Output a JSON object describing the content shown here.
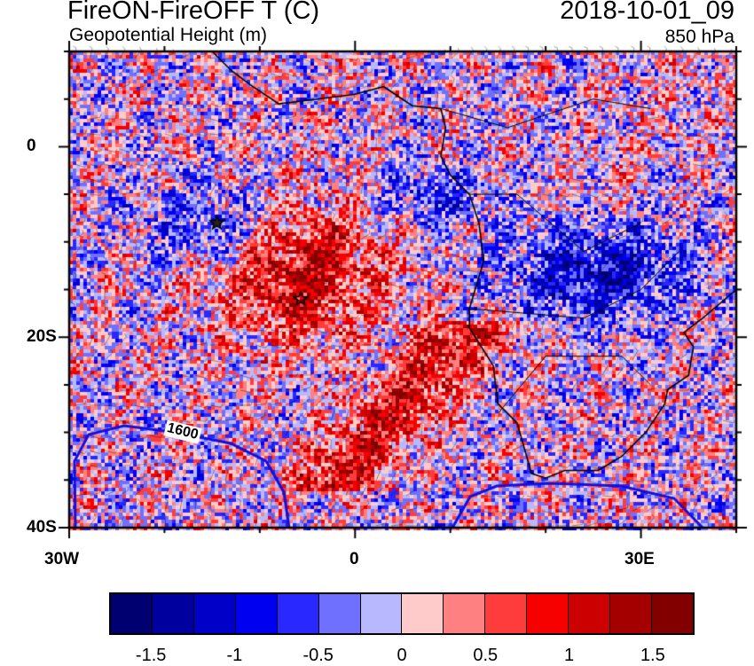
{
  "title": "FireON-FireOFF T (C)",
  "subtitle": "Geopotential Height (m)",
  "date": "2018-10-01_09",
  "level": "850 hPa",
  "contour_label": "1600",
  "lon_labels": [
    "30W",
    "0",
    "30E"
  ],
  "lat_labels": [
    "0",
    "20S",
    "40S"
  ],
  "colorbar": {
    "colors": [
      "#000070",
      "#00009e",
      "#0000c8",
      "#0000f0",
      "#2828ff",
      "#7070ff",
      "#b8b8ff",
      "#ffcaca",
      "#ff8080",
      "#ff3c3c",
      "#f60000",
      "#cc0000",
      "#a40000",
      "#820000"
    ],
    "labels": [
      "-1.5",
      "-1",
      "-0.5",
      "0",
      "0.5",
      "1",
      "1.5"
    ]
  },
  "chart_data": {
    "type": "heatmap",
    "title": "FireON-FireOFF T (C)",
    "overlay": "Geopotential Height (m) contours, 850 hPa wind barbs",
    "lon_range": [
      -30,
      40
    ],
    "lat_range": [
      -40,
      10
    ],
    "levels": [
      -1.5,
      -1.25,
      -1,
      -0.75,
      -0.5,
      -0.25,
      0,
      0.25,
      0.5,
      0.75,
      1,
      1.25,
      1.5
    ],
    "contours": [
      1600
    ],
    "markers": [
      {
        "lon": -14.5,
        "lat": -8
      },
      {
        "lon": -5.7,
        "lat": -16
      }
    ]
  }
}
